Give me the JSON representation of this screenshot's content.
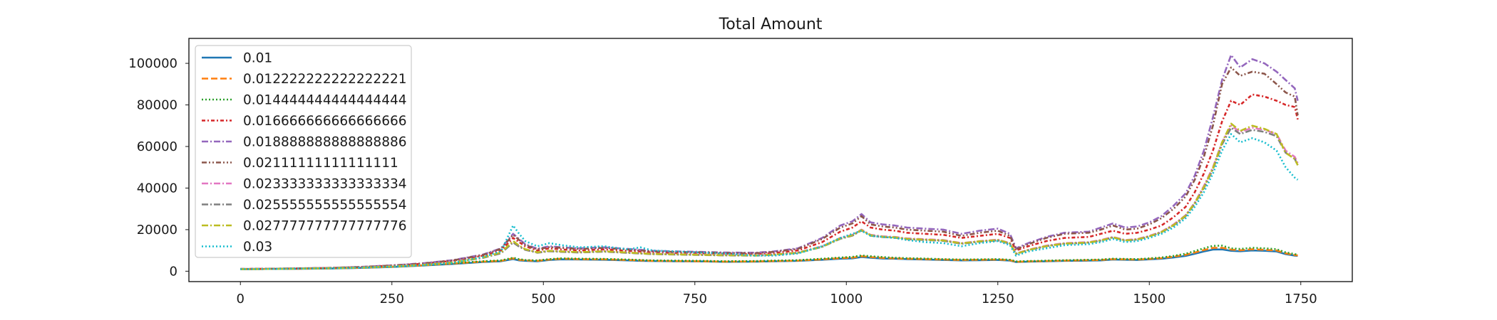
{
  "chart_data": {
    "type": "line",
    "title": "Total Amount",
    "xlabel": "",
    "ylabel": "",
    "xlim": [
      -85,
      1835
    ],
    "ylim": [
      -5000,
      112000
    ],
    "xticks": [
      0,
      250,
      500,
      750,
      1000,
      1250,
      1500,
      1750
    ],
    "yticks": [
      0,
      20000,
      40000,
      60000,
      80000,
      100000
    ],
    "grid": false,
    "legend_position": "upper-left",
    "x": [
      0,
      50,
      100,
      150,
      200,
      250,
      300,
      350,
      400,
      430,
      450,
      460,
      470,
      490,
      510,
      530,
      560,
      600,
      640,
      660,
      680,
      720,
      760,
      800,
      850,
      880,
      920,
      960,
      990,
      1010,
      1025,
      1040,
      1060,
      1080,
      1100,
      1130,
      1160,
      1190,
      1220,
      1250,
      1270,
      1280,
      1300,
      1330,
      1360,
      1400,
      1420,
      1440,
      1460,
      1480,
      1500,
      1520,
      1540,
      1560,
      1575,
      1590,
      1605,
      1620,
      1635,
      1650,
      1670,
      1690,
      1710,
      1725,
      1740,
      1745
    ],
    "series": [
      {
        "name": "0.01",
        "color": "#1f77b4",
        "dash": "solid",
        "values": [
          1000,
          1100,
          1200,
          1300,
          1600,
          2000,
          2700,
          3500,
          4400,
          4800,
          5800,
          5200,
          5000,
          4800,
          5400,
          5700,
          5600,
          5500,
          5200,
          5000,
          4900,
          4800,
          4700,
          4500,
          4600,
          4800,
          5000,
          5500,
          6000,
          6200,
          6800,
          6500,
          6100,
          6000,
          5800,
          5600,
          5400,
          5200,
          5300,
          5400,
          5100,
          4400,
          4600,
          4800,
          5000,
          5100,
          5200,
          5600,
          5500,
          5400,
          5700,
          6000,
          6600,
          7400,
          8400,
          9500,
          10400,
          10500,
          9800,
          9600,
          10000,
          9800,
          9500,
          8200,
          7500,
          7400
        ]
      },
      {
        "name": "0.012222222222222221",
        "color": "#ff7f0e",
        "dash": "dashed",
        "values": [
          1000,
          1100,
          1200,
          1350,
          1650,
          2100,
          2800,
          3700,
          4600,
          5000,
          6200,
          5500,
          5200,
          5000,
          5600,
          6000,
          5800,
          5700,
          5400,
          5200,
          5000,
          4900,
          4800,
          4600,
          4700,
          4900,
          5100,
          5700,
          6300,
          6500,
          7200,
          6800,
          6400,
          6200,
          6000,
          5800,
          5600,
          5400,
          5500,
          5600,
          5300,
          4500,
          4700,
          4900,
          5100,
          5300,
          5400,
          5800,
          5700,
          5600,
          5900,
          6300,
          7000,
          7900,
          9000,
          10200,
          11200,
          11300,
          10400,
          10100,
          10600,
          10300,
          10000,
          8600,
          7800,
          7600
        ]
      },
      {
        "name": "0.014444444444444444",
        "color": "#2ca02c",
        "dash": "dotted",
        "values": [
          1000,
          1100,
          1250,
          1400,
          1700,
          2200,
          2900,
          3800,
          4800,
          5200,
          6500,
          5800,
          5400,
          5200,
          5800,
          6200,
          6000,
          5900,
          5600,
          5400,
          5200,
          5100,
          5000,
          4800,
          4900,
          5100,
          5300,
          6000,
          6600,
          6900,
          7600,
          7200,
          6800,
          6500,
          6300,
          6100,
          5800,
          5600,
          5700,
          5800,
          5500,
          4700,
          4900,
          5100,
          5300,
          5500,
          5600,
          6000,
          5900,
          5800,
          6200,
          6600,
          7400,
          8400,
          9700,
          11000,
          12200,
          12300,
          11000,
          10700,
          11300,
          11000,
          10600,
          9100,
          8200,
          8000
        ]
      },
      {
        "name": "0.016666666666666666",
        "color": "#d62728",
        "dash": "dashdot-dense",
        "values": [
          1100,
          1200,
          1350,
          1600,
          2000,
          2700,
          3600,
          5000,
          7500,
          10000,
          16000,
          14000,
          12000,
          10000,
          11000,
          10500,
          10000,
          10500,
          9800,
          9500,
          9000,
          8800,
          8600,
          8400,
          8300,
          8800,
          10000,
          14000,
          19000,
          21000,
          24000,
          21000,
          20000,
          19500,
          18500,
          18000,
          17500,
          16000,
          17000,
          18000,
          16000,
          10000,
          12000,
          14500,
          16000,
          16500,
          18000,
          19500,
          18000,
          18500,
          20000,
          22000,
          26000,
          31000,
          38000,
          47000,
          58000,
          72000,
          82000,
          80000,
          85000,
          84000,
          82000,
          80000,
          79000,
          73000
        ]
      },
      {
        "name": "0.018888888888888886",
        "color": "#9467bd",
        "dash": "dashdot",
        "values": [
          1100,
          1200,
          1400,
          1650,
          2100,
          2800,
          3800,
          5300,
          8000,
          11000,
          18000,
          15500,
          13000,
          10800,
          12000,
          11500,
          11000,
          11500,
          10700,
          10300,
          9800,
          9500,
          9300,
          9000,
          8900,
          9500,
          11000,
          16000,
          22000,
          24000,
          27500,
          23500,
          22500,
          22000,
          21000,
          20500,
          20000,
          18000,
          19500,
          20500,
          18000,
          11000,
          13500,
          16500,
          18500,
          19000,
          21000,
          23000,
          21000,
          21500,
          23500,
          26500,
          31500,
          37500,
          46000,
          58000,
          74000,
          92000,
          104000,
          98000,
          102000,
          100000,
          96000,
          92000,
          88000,
          82000
        ]
      },
      {
        "name": "0.02111111111111111",
        "color": "#8c564b",
        "dash": "dashdotdot",
        "values": [
          1100,
          1200,
          1400,
          1600,
          2050,
          2750,
          3700,
          5200,
          7800,
          10800,
          17500,
          15000,
          12600,
          10500,
          11600,
          11200,
          10700,
          11200,
          10400,
          10000,
          9500,
          9300,
          9100,
          8800,
          8700,
          9300,
          10700,
          15500,
          21000,
          23000,
          26500,
          22500,
          21500,
          21000,
          20000,
          19500,
          19000,
          17000,
          18500,
          19500,
          17000,
          10500,
          13000,
          16000,
          18000,
          18500,
          20000,
          22000,
          20000,
          20500,
          22500,
          25500,
          30000,
          36000,
          44000,
          55000,
          70000,
          90000,
          98000,
          94000,
          96000,
          95000,
          90000,
          86000,
          84000,
          75000
        ]
      },
      {
        "name": "0.023333333333333334",
        "color": "#e377c2",
        "dash": "dashdot",
        "values": [
          1000,
          1100,
          1300,
          1500,
          1800,
          2400,
          3100,
          4300,
          6500,
          8800,
          14000,
          12000,
          10500,
          9000,
          9800,
          9500,
          9200,
          9600,
          9000,
          8700,
          8400,
          8200,
          8000,
          7800,
          7700,
          8100,
          9000,
          12000,
          16000,
          17500,
          20000,
          17500,
          16800,
          16500,
          15800,
          15400,
          15000,
          13500,
          14500,
          15200,
          13500,
          8500,
          10300,
          12300,
          13500,
          14000,
          15000,
          16500,
          15000,
          15500,
          17000,
          19000,
          22500,
          27000,
          33000,
          41000,
          50000,
          62000,
          70000,
          67000,
          69000,
          68000,
          66000,
          58000,
          55000,
          52000
        ]
      },
      {
        "name": "0.025555555555555554",
        "color": "#7f7f7f",
        "dash": "dashdot",
        "values": [
          1000,
          1100,
          1250,
          1450,
          1750,
          2300,
          3000,
          4200,
          6400,
          8600,
          13800,
          11800,
          10300,
          8900,
          9600,
          9300,
          9000,
          9400,
          8800,
          8500,
          8200,
          8000,
          7800,
          7600,
          7500,
          7900,
          8800,
          11700,
          15600,
          17100,
          19600,
          17100,
          16400,
          16100,
          15400,
          15000,
          14600,
          13200,
          14200,
          14800,
          13200,
          8300,
          10100,
          12000,
          13200,
          13700,
          14700,
          16200,
          14700,
          15200,
          16700,
          18700,
          22000,
          26500,
          32500,
          40000,
          49000,
          61000,
          69000,
          66000,
          68000,
          67000,
          65000,
          57000,
          54000,
          51000
        ]
      },
      {
        "name": "0.027777777777777776",
        "color": "#bcbd22",
        "dash": "dashdot",
        "values": [
          1000,
          1100,
          1250,
          1450,
          1750,
          2300,
          3000,
          4200,
          6600,
          9000,
          14500,
          12300,
          10600,
          9100,
          9800,
          9500,
          9200,
          9600,
          9000,
          8600,
          8300,
          8100,
          7900,
          7700,
          7600,
          8000,
          8900,
          11800,
          15800,
          17300,
          19800,
          17300,
          16600,
          16300,
          15600,
          15200,
          14800,
          13400,
          14400,
          15000,
          13400,
          8400,
          10200,
          12100,
          13300,
          13800,
          14800,
          16300,
          14800,
          15300,
          16800,
          18800,
          22200,
          26800,
          32800,
          40500,
          49500,
          62000,
          71000,
          67500,
          70000,
          68500,
          66000,
          57000,
          54000,
          51000
        ]
      },
      {
        "name": "0.03",
        "color": "#17becf",
        "dash": "dotted",
        "values": [
          1000,
          1100,
          1250,
          1400,
          1700,
          2200,
          2900,
          4000,
          6800,
          9500,
          22000,
          18000,
          14500,
          12000,
          13500,
          12500,
          11500,
          12000,
          10500,
          11500,
          10000,
          9500,
          9000,
          8500,
          7500,
          7500,
          8500,
          12000,
          16000,
          18000,
          19500,
          17000,
          16500,
          16000,
          15000,
          14000,
          13500,
          12000,
          13500,
          14500,
          12500,
          7500,
          9500,
          11000,
          12500,
          13000,
          14000,
          15500,
          14000,
          14500,
          16000,
          18000,
          21000,
          25500,
          31000,
          38000,
          47000,
          58000,
          66000,
          62000,
          64000,
          62000,
          58000,
          50000,
          45000,
          44000
        ]
      }
    ]
  }
}
